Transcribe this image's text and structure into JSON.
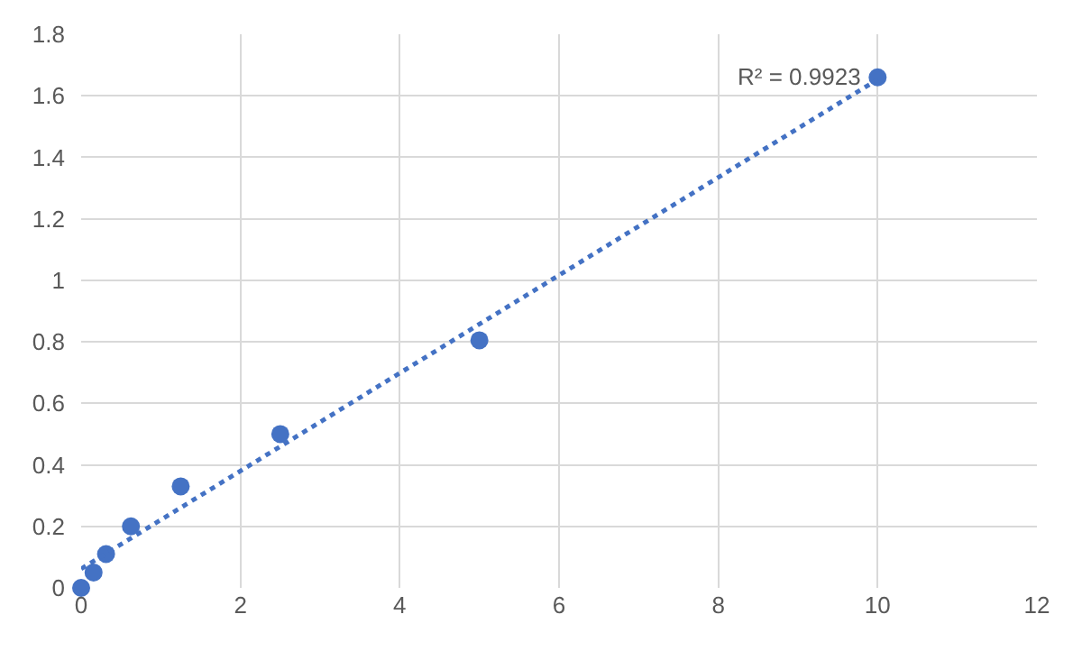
{
  "chart_data": {
    "type": "scatter",
    "x": [
      0,
      0.156,
      0.3125,
      0.625,
      1.25,
      2.5,
      5,
      10
    ],
    "series": [
      {
        "color": "#4472c4",
        "marker": "circle",
        "values": [
          0,
          0.05,
          0.11,
          0.2,
          0.33,
          0.5,
          0.805,
          1.66
        ]
      },
      {
        "type": "line",
        "color": "#4472c4",
        "marker": "none",
        "line_style": "dotted",
        "x": [
          0,
          10
        ],
        "values": [
          0.062,
          1.653
        ]
      }
    ],
    "xlim": [
      0,
      12
    ],
    "xticks": [
      0,
      2,
      4,
      6,
      8,
      10,
      12
    ],
    "ylim": [
      0,
      1.8
    ],
    "yticks": [
      0,
      0.2,
      0.4,
      0.6,
      0.8,
      1,
      1.2,
      1.4,
      1.6,
      1.8
    ],
    "grid": true,
    "annotations": [
      {
        "text": "R² = 0.9923",
        "x": 10,
        "y": 1.66
      }
    ]
  }
}
